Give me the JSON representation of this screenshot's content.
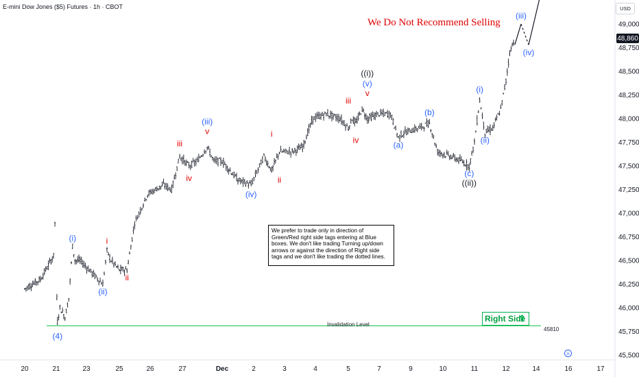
{
  "header": {
    "symbol_title": "E-mini Dow Jones ($5) Futures · 1h · CBOT",
    "currency": "USD",
    "headline": "We Do Not Recommend Selling"
  },
  "price_scale": {
    "current_price": "48,860"
  },
  "note": {
    "text": "We prefer to trade only in direction of Green/Red right side tags entering at Blue boxes. We don't like trading Turning up/down arrows or against the direction of Right side tags and we don't like trading the dotted lines."
  },
  "right_side_tag": {
    "label": "Right Side",
    "arrow": "up-arrow-icon"
  },
  "invalidation": {
    "label": "Invalidation Level",
    "value": "45810"
  },
  "colors": {
    "candles": "#131722",
    "blue_labels": "#2962ff",
    "red_labels": "#e00000",
    "black_labels": "#131722",
    "invalidation_line": "#00c040",
    "headline": "#e00000"
  },
  "chart_data": {
    "type": "line",
    "x_type": "date",
    "interval": "1h",
    "y_axis": {
      "position": "right",
      "ticks": [
        45500,
        45750,
        46000,
        46250,
        46500,
        46750,
        47000,
        47250,
        47500,
        47750,
        48000,
        48250,
        48500,
        48750,
        49000
      ],
      "tick_labels": [
        "45,500",
        "45,750",
        "46,000",
        "46,250",
        "46,500",
        "46,750",
        "47,000",
        "47,250",
        "47,500",
        "47,750",
        "48,000",
        "48,250",
        "48,500",
        "48,750",
        "49,000"
      ],
      "range": [
        45450,
        49300
      ]
    },
    "x_axis": {
      "tick_labels": [
        "20",
        "21",
        "23",
        "25",
        "26",
        "27",
        "Dec",
        "2",
        "3",
        "4",
        "5",
        "7",
        "9",
        "10",
        "11",
        "12",
        "14",
        "16",
        "17"
      ]
    },
    "grid": false,
    "series": [
      {
        "values_approx": [
          [
            "Nov 20 00:00",
            46200
          ],
          [
            "Nov 20 12:00",
            46300
          ],
          [
            "Nov 20 22:00",
            46550
          ],
          [
            "Nov 20 23:00",
            46900
          ],
          [
            "Nov 21 01:00",
            46100
          ],
          [
            "Nov 21 02:00",
            45850
          ],
          [
            "Nov 21 06:00",
            46000
          ],
          [
            "Nov 21 14:00",
            45900
          ],
          [
            "Nov 21 20:00",
            46100
          ],
          [
            "Nov 22 02:00",
            46650
          ],
          [
            "Nov 22 06:00",
            46500
          ],
          [
            "Nov 22 14:00",
            46500
          ],
          [
            "Nov 24 00:00",
            46250
          ],
          [
            "Nov 24 06:00",
            46600
          ],
          [
            "Nov 24 12:00",
            46500
          ],
          [
            "Nov 25 00:00",
            46400
          ],
          [
            "Nov 25 06:00",
            46400
          ],
          [
            "Nov 25 12:00",
            46900
          ],
          [
            "Nov 25 22:00",
            47200
          ],
          [
            "Nov 26 10:00",
            47300
          ],
          [
            "Nov 26 16:00",
            47250
          ],
          [
            "Nov 26 22:00",
            47600
          ],
          [
            "Nov 27 08:00",
            47500
          ],
          [
            "Nov 27 18:00",
            47550
          ],
          [
            "Nov 28 06:00",
            47700
          ],
          [
            "Nov 28 14:00",
            47550
          ],
          [
            "Dec 1 00:00",
            47550
          ],
          [
            "Dec 1 12:00",
            47350
          ],
          [
            "Dec 1 22:00",
            47300
          ],
          [
            "Dec 2 08:00",
            47600
          ],
          [
            "Dec 2 14:00",
            47450
          ],
          [
            "Dec 2 20:00",
            47650
          ],
          [
            "Dec 3 06:00",
            47650
          ],
          [
            "Dec 3 14:00",
            47700
          ],
          [
            "Dec 3 22:00",
            48000
          ],
          [
            "Dec 4 08:00",
            48050
          ],
          [
            "Dec 4 18:00",
            48000
          ],
          [
            "Dec 5 00:00",
            47900
          ],
          [
            "Dec 5 06:00",
            48000
          ],
          [
            "Dec 5 12:00",
            47950
          ],
          [
            "Dec 5 22:00",
            48100
          ],
          [
            "Dec 6 06:00",
            48000
          ],
          [
            "Dec 7 00:00",
            48050
          ],
          [
            "Dec 7 18:00",
            48050
          ],
          [
            "Dec 8 06:00",
            47800
          ],
          [
            "Dec 8 14:00",
            47850
          ],
          [
            "Dec 9 06:00",
            47900
          ],
          [
            "Dec 9 14:00",
            47950
          ],
          [
            "Dec 9 20:00",
            47650
          ],
          [
            "Dec 10 06:00",
            47600
          ],
          [
            "Dec 10 14:00",
            47550
          ],
          [
            "Dec 10 20:00",
            47500
          ],
          [
            "Dec 11 00:00",
            47750
          ],
          [
            "Dec 11 04:00",
            48200
          ],
          [
            "Dec 11 08:00",
            47850
          ],
          [
            "Dec 11 14:00",
            47900
          ],
          [
            "Dec 11 20:00",
            48100
          ],
          [
            "Dec 12 00:00",
            48400
          ],
          [
            "Dec 12 06:00",
            48700
          ],
          [
            "Dec 12 14:00",
            48860
          ]
        ]
      }
    ],
    "wave_labels": [
      {
        "text": "(4)",
        "color": "blue",
        "date": "Nov 21 02:00",
        "price": 45780,
        "pos": "below"
      },
      {
        "text": "(i)",
        "color": "blue",
        "date": "Nov 22 02:00",
        "price": 46650,
        "pos": "above"
      },
      {
        "text": "(ii)",
        "color": "blue",
        "date": "Nov 24 00:00",
        "price": 46250,
        "pos": "below"
      },
      {
        "text": "i",
        "color": "red",
        "date": "Nov 24 06:00",
        "price": 46620,
        "pos": "above"
      },
      {
        "text": "ii",
        "color": "red",
        "date": "Nov 25 06:00",
        "price": 46400,
        "pos": "below"
      },
      {
        "text": "iii",
        "color": "red",
        "date": "Nov 26 22:00",
        "price": 47650,
        "pos": "above"
      },
      {
        "text": "iv",
        "color": "red",
        "date": "Nov 27 08:00",
        "price": 47450,
        "pos": "below"
      },
      {
        "text": "v",
        "color": "red",
        "date": "Nov 28 06:00",
        "price": 47780,
        "pos": "above"
      },
      {
        "text": "(iii)",
        "color": "blue",
        "date": "Nov 28 06:00",
        "price": 47780,
        "pos": "above2"
      },
      {
        "text": "(iv)",
        "color": "blue",
        "date": "Dec 1 22:00",
        "price": 47280,
        "pos": "below"
      },
      {
        "text": "i",
        "color": "red",
        "date": "Dec 2 14:00",
        "price": 47750,
        "pos": "above"
      },
      {
        "text": "ii",
        "color": "red",
        "date": "Dec 2 20:00",
        "price": 47430,
        "pos": "below"
      },
      {
        "text": "iii",
        "color": "red",
        "date": "Dec 5 00:00",
        "price": 48100,
        "pos": "above"
      },
      {
        "text": "iv",
        "color": "red",
        "date": "Dec 5 12:00",
        "price": 47850,
        "pos": "below"
      },
      {
        "text": "v",
        "color": "red",
        "date": "Dec 6 06:00",
        "price": 48180,
        "pos": "above"
      },
      {
        "text": "(v)",
        "color": "blue",
        "date": "Dec 6 06:00",
        "price": 48180,
        "pos": "above2"
      },
      {
        "text": "((i))",
        "color": "black",
        "date": "Dec 6 06:00",
        "price": 48180,
        "pos": "above3"
      },
      {
        "text": "(a)",
        "color": "blue",
        "date": "Dec 8 06:00",
        "price": 47800,
        "pos": "below"
      },
      {
        "text": "(b)",
        "color": "blue",
        "date": "Dec 9 14:00",
        "price": 47980,
        "pos": "above"
      },
      {
        "text": "(c)",
        "color": "blue",
        "date": "Dec 10 20:00",
        "price": 47500,
        "pos": "below"
      },
      {
        "text": "((ii))",
        "color": "black",
        "date": "Dec 10 20:00",
        "price": 47500,
        "pos": "below2"
      },
      {
        "text": "(i)",
        "color": "blue",
        "date": "Dec 11 04:00",
        "price": 48220,
        "pos": "above"
      },
      {
        "text": "(ii)",
        "color": "blue",
        "date": "Dec 11 08:00",
        "price": 47850,
        "pos": "below"
      },
      {
        "text": "(iii)",
        "color": "blue",
        "date": "Dec 13 00:00",
        "price": 49000,
        "pos": "above"
      },
      {
        "text": "(iv)",
        "color": "blue",
        "date": "Dec 13 12:00",
        "price": 48780,
        "pos": "below"
      }
    ],
    "projection": [
      {
        "date": "Dec 12 14:00",
        "price": 48780,
        "style": "solid"
      },
      {
        "date": "Dec 13 00:00",
        "price": 49000,
        "style": "solid"
      },
      {
        "date": "Dec 13 12:00",
        "price": 48780,
        "style": "dashed"
      },
      {
        "date": "Dec 14 06:00",
        "price": 49300,
        "style": "solid"
      }
    ],
    "invalidation_level": 45810
  }
}
